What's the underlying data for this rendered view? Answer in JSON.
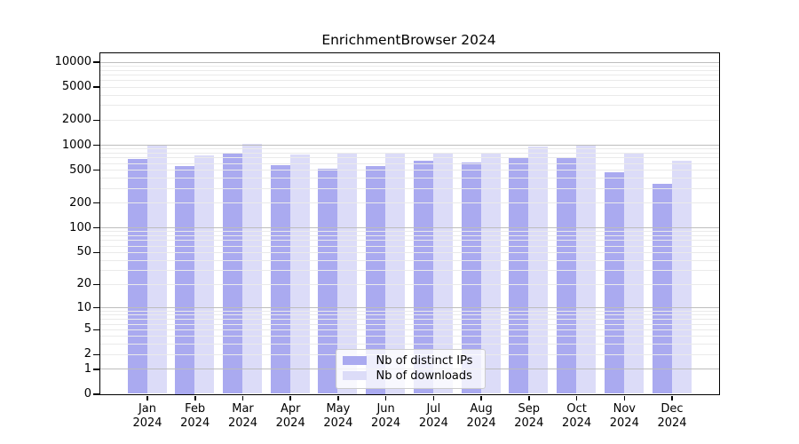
{
  "title": "EnrichmentBrowser 2024",
  "chart_data": {
    "type": "bar",
    "title": "EnrichmentBrowser 2024",
    "xlabel": "",
    "ylabel": "",
    "yscale": "log1p",
    "ylim": [
      0,
      12800
    ],
    "yticks": [
      0,
      1,
      2,
      5,
      10,
      20,
      50,
      100,
      200,
      500,
      1000,
      2000,
      5000,
      10000
    ],
    "grid": {
      "major_lines": [
        1,
        10,
        100,
        1000,
        10000
      ],
      "minor_mantissas": [
        2,
        3,
        4,
        5,
        6,
        7,
        8,
        9
      ],
      "minor_decades": [
        0,
        1,
        2,
        3
      ]
    },
    "categories": [
      {
        "month": "Jan",
        "year": "2024"
      },
      {
        "month": "Feb",
        "year": "2024"
      },
      {
        "month": "Mar",
        "year": "2024"
      },
      {
        "month": "Apr",
        "year": "2024"
      },
      {
        "month": "May",
        "year": "2024"
      },
      {
        "month": "Jun",
        "year": "2024"
      },
      {
        "month": "Jul",
        "year": "2024"
      },
      {
        "month": "Aug",
        "year": "2024"
      },
      {
        "month": "Sep",
        "year": "2024"
      },
      {
        "month": "Oct",
        "year": "2024"
      },
      {
        "month": "Nov",
        "year": "2024"
      },
      {
        "month": "Dec",
        "year": "2024"
      }
    ],
    "series": [
      {
        "name": "Nb of distinct IPs",
        "color": "#aaaaf0",
        "values": [
          670,
          560,
          775,
          565,
          510,
          560,
          635,
          615,
          705,
          700,
          460,
          335
        ]
      },
      {
        "name": "Nb of downloads",
        "color": "#dcdcf8",
        "values": [
          965,
          750,
          1020,
          760,
          780,
          800,
          785,
          775,
          955,
          1005,
          805,
          640
        ]
      }
    ],
    "legend_position": "bottom-center"
  },
  "colors": {
    "background": "#ffffff",
    "axis": "#000000",
    "grid_major": "#bdbdbd",
    "grid_minor": "#eaeaea",
    "legend_border": "#cccccc",
    "text": "#000000"
  }
}
